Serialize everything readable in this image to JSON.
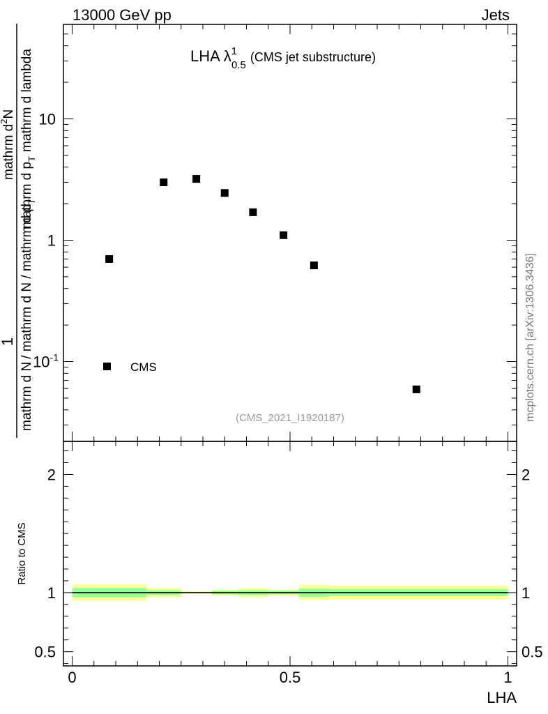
{
  "header": {
    "left": "13000 GeV pp",
    "right": "Jets"
  },
  "plot_title": {
    "main": "LHA λ",
    "sup": "1",
    "sub": "0.5",
    "suffix": "(CMS jet substructure)"
  },
  "y_axis_label": {
    "numerator": "1",
    "denominator_left": "mathrm d N",
    "denominator_right": "/ mathrm d N / mathrm d p",
    "den_sub": "T",
    "top_numerator": "mathrm d",
    "top_sup": "2",
    "top_rest": "N",
    "top_denominator": "mathrm d p",
    "top_den_sub": "T",
    "top_den_rest": "mathrm d lambda"
  },
  "analysis_id": "(CMS_2021_I1920187)",
  "watermark": "mcplots.cern.ch [arXiv:1306.3436]",
  "legend": {
    "label": "CMS",
    "position": "bottom-left"
  },
  "ratio_axis_label": "Ratio to CMS",
  "x_axis_label": "LHA",
  "colors": {
    "band_outer": "#ffff99",
    "band_inner": "#99ff99",
    "marker": "#000000"
  },
  "chart_data": [
    {
      "type": "scatter",
      "title": "",
      "xlabel": "",
      "ylabel": "",
      "log_y": true,
      "xlim": [
        -0.02,
        1.02
      ],
      "ylim": [
        0.022,
        60
      ],
      "y_ticks": [
        {
          "value": 0.1,
          "label": "10^-1"
        },
        {
          "value": 1,
          "label": "1"
        },
        {
          "value": 10,
          "label": "10"
        }
      ],
      "series": [
        {
          "name": "CMS",
          "x": [
            0.085,
            0.21,
            0.285,
            0.35,
            0.415,
            0.485,
            0.555,
            0.79
          ],
          "y": [
            0.7,
            3.0,
            3.2,
            2.45,
            1.7,
            1.1,
            0.62,
            0.059
          ]
        }
      ]
    },
    {
      "type": "area",
      "title": "",
      "xlabel": "LHA",
      "ylabel": "Ratio to CMS",
      "xlim": [
        -0.02,
        1.02
      ],
      "ylim": [
        0.38,
        2.28
      ],
      "x_ticks": [
        {
          "value": 0,
          "label": "0"
        },
        {
          "value": 0.5,
          "label": "0.5"
        },
        {
          "value": 1,
          "label": "1"
        }
      ],
      "y_ticks": [
        {
          "value": 0.5,
          "label": "0.5"
        },
        {
          "value": 1,
          "label": "1"
        },
        {
          "value": 2,
          "label": "2"
        }
      ],
      "reference_line": 1,
      "bins": [
        {
          "x0": 0.0,
          "x1": 0.17,
          "outer": [
            0.93,
            1.07
          ],
          "inner": [
            0.96,
            1.04
          ]
        },
        {
          "x0": 0.17,
          "x1": 0.25,
          "outer": [
            0.96,
            1.04
          ],
          "inner": [
            0.98,
            1.02
          ]
        },
        {
          "x0": 0.25,
          "x1": 0.32,
          "outer": [
            0.99,
            1.01
          ],
          "inner": [
            0.995,
            1.005
          ]
        },
        {
          "x0": 0.32,
          "x1": 0.38,
          "outer": [
            0.975,
            1.025
          ],
          "inner": [
            0.985,
            1.015
          ]
        },
        {
          "x0": 0.38,
          "x1": 0.45,
          "outer": [
            0.96,
            1.04
          ],
          "inner": [
            0.98,
            1.02
          ]
        },
        {
          "x0": 0.45,
          "x1": 0.52,
          "outer": [
            0.975,
            1.025
          ],
          "inner": [
            0.985,
            1.015
          ]
        },
        {
          "x0": 0.52,
          "x1": 0.59,
          "outer": [
            0.935,
            1.065
          ],
          "inner": [
            0.965,
            1.035
          ]
        },
        {
          "x0": 0.59,
          "x1": 1.0,
          "outer": [
            0.94,
            1.06
          ],
          "inner": [
            0.97,
            1.03
          ]
        }
      ]
    }
  ]
}
